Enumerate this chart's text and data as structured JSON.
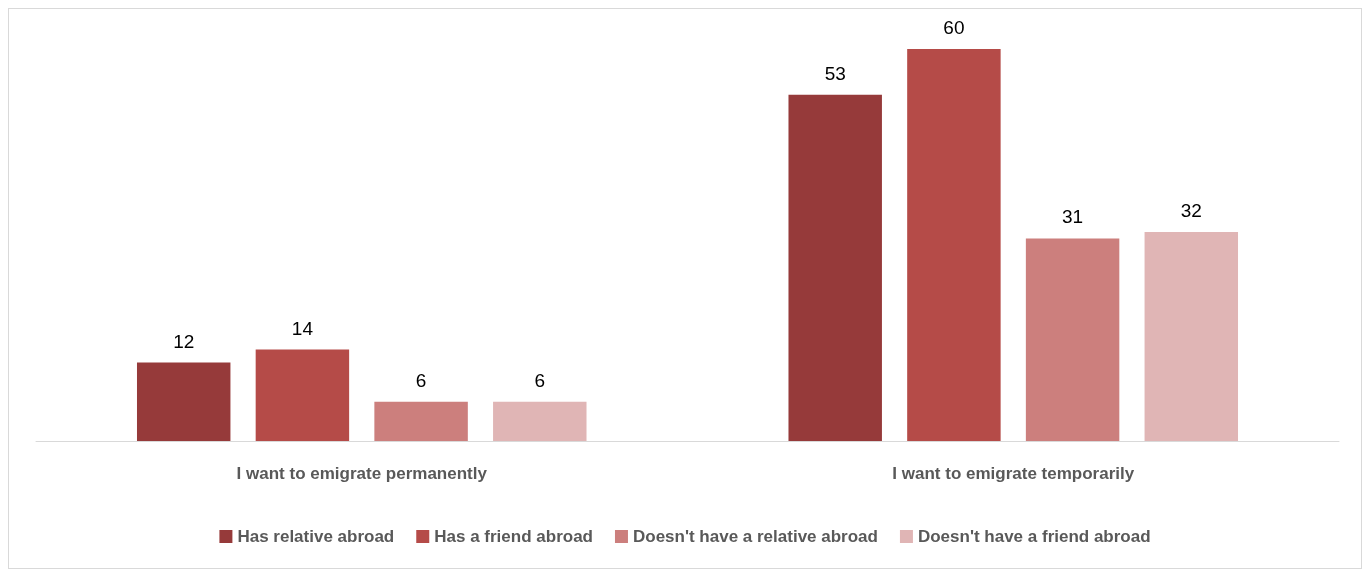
{
  "chart_data": {
    "type": "bar",
    "categories": [
      "I want to emigrate permanently",
      "I want to emigrate temporarily"
    ],
    "series": [
      {
        "name": "Has relative abroad",
        "color": "#963a3a",
        "values": [
          12,
          53
        ]
      },
      {
        "name": "Has a friend abroad",
        "color": "#b54b48",
        "values": [
          14,
          60
        ]
      },
      {
        "name": "Doesn't have a relative abroad",
        "color": "#cc7f7d",
        "values": [
          6,
          31
        ]
      },
      {
        "name": "Doesn't have a friend abroad",
        "color": "#e0b5b5",
        "values": [
          6,
          32
        ]
      }
    ],
    "data_labels": true,
    "legend": "bottom",
    "tick_labels": "x"
  }
}
